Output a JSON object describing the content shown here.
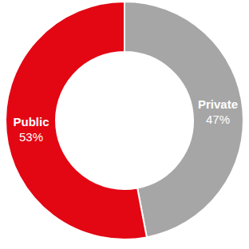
{
  "chart_data": {
    "type": "donut",
    "categories": [
      "Private",
      "Public"
    ],
    "values": [
      47,
      53
    ],
    "value_labels": [
      "47%",
      "53%"
    ],
    "colors": [
      "#a6a6a6",
      "#e30613"
    ],
    "data_labels": true
  }
}
